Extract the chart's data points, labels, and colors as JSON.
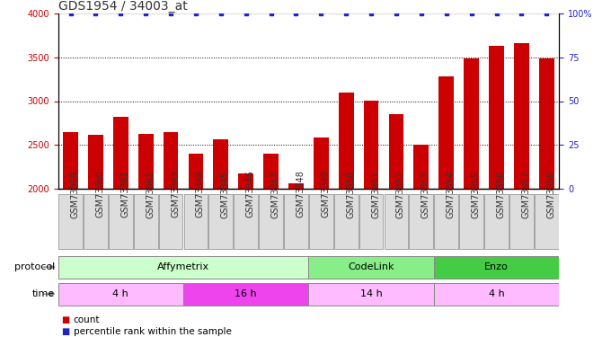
{
  "title": "GDS1954 / 34003_at",
  "samples": [
    "GSM73359",
    "GSM73360",
    "GSM73361",
    "GSM73362",
    "GSM73363",
    "GSM73344",
    "GSM73345",
    "GSM73346",
    "GSM73347",
    "GSM73348",
    "GSM73349",
    "GSM73350",
    "GSM73351",
    "GSM73352",
    "GSM73353",
    "GSM73354",
    "GSM73355",
    "GSM73356",
    "GSM73357",
    "GSM73358"
  ],
  "counts": [
    2650,
    2620,
    2820,
    2630,
    2650,
    2400,
    2560,
    2170,
    2400,
    2060,
    2580,
    3100,
    3010,
    2850,
    2500,
    3280,
    3490,
    3630,
    3660,
    3490
  ],
  "bar_color": "#cc0000",
  "dot_color": "#2222cc",
  "ylim_left": [
    2000,
    4000
  ],
  "ylim_right": [
    0,
    100
  ],
  "yticks_left": [
    2000,
    2500,
    3000,
    3500,
    4000
  ],
  "yticks_right": [
    0,
    25,
    50,
    75,
    100
  ],
  "protocol_groups": [
    {
      "label": "Affymetrix",
      "start": 0,
      "end": 9,
      "color": "#ccffcc"
    },
    {
      "label": "CodeLink",
      "start": 10,
      "end": 14,
      "color": "#88ee88"
    },
    {
      "label": "Enzo",
      "start": 15,
      "end": 19,
      "color": "#44cc44"
    }
  ],
  "time_groups": [
    {
      "label": "4 h",
      "start": 0,
      "end": 4,
      "color": "#ffbbff"
    },
    {
      "label": "16 h",
      "start": 5,
      "end": 9,
      "color": "#ee44ee"
    },
    {
      "label": "14 h",
      "start": 10,
      "end": 14,
      "color": "#ffbbff"
    },
    {
      "label": "4 h",
      "start": 15,
      "end": 19,
      "color": "#ffbbff"
    }
  ],
  "bg_color": "#ffffff",
  "tick_label_color_left": "#cc0000",
  "tick_label_color_right": "#2222cc",
  "grid_color": "#000000",
  "title_fontsize": 10,
  "tick_fontsize": 7,
  "bar_width": 0.6,
  "xtick_bg": "#dddddd",
  "xtick_border": "#888888"
}
